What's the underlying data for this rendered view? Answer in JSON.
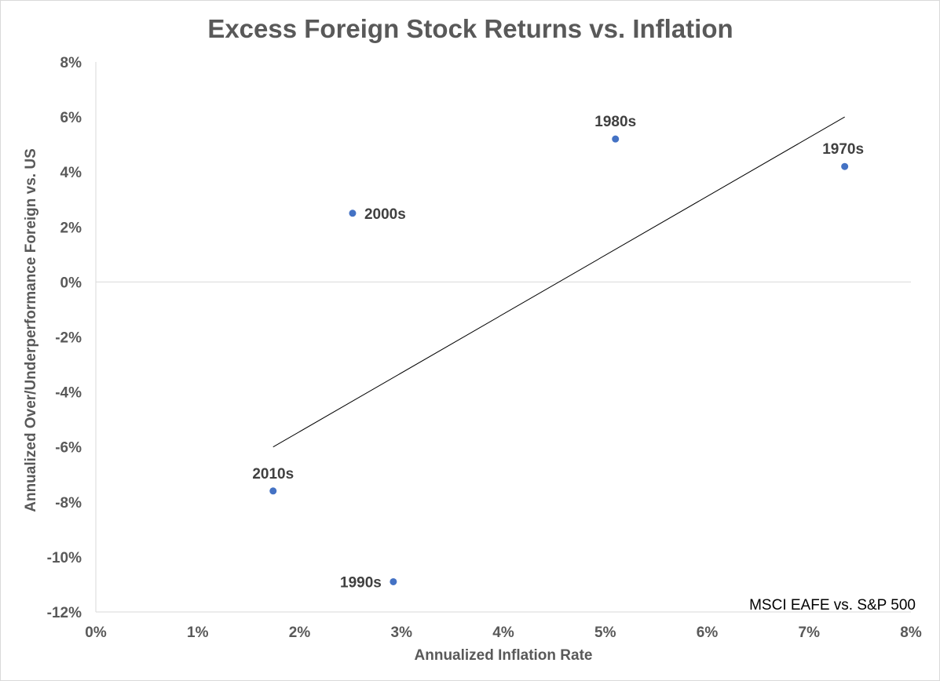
{
  "chart_data": {
    "type": "scatter",
    "title": "Excess Foreign Stock Returns vs. Inflation",
    "xlabel": "Annualized Inflation Rate",
    "ylabel": "Annualized Over/Underperformance Foreign vs. US",
    "xlim": [
      0,
      8
    ],
    "ylim": [
      -12,
      8
    ],
    "x_ticks": [
      0,
      1,
      2,
      3,
      4,
      5,
      6,
      7,
      8
    ],
    "y_ticks": [
      8,
      6,
      4,
      2,
      0,
      -2,
      -4,
      -6,
      -8,
      -10,
      -12
    ],
    "x_tick_labels": [
      "0%",
      "1%",
      "2%",
      "3%",
      "4%",
      "5%",
      "6%",
      "7%",
      "8%"
    ],
    "y_tick_labels": [
      "8%",
      "6%",
      "4%",
      "2%",
      "0%",
      "-2%",
      "-4%",
      "-6%",
      "-8%",
      "-10%",
      "-12%"
    ],
    "points": [
      {
        "label": "1970s",
        "x": 7.35,
        "y": 4.2
      },
      {
        "label": "1980s",
        "x": 5.1,
        "y": 5.2
      },
      {
        "label": "2000s",
        "x": 2.52,
        "y": 2.5
      },
      {
        "label": "2010s",
        "x": 1.74,
        "y": -7.6
      },
      {
        "label": "1990s",
        "x": 2.92,
        "y": -10.9
      }
    ],
    "trendline": {
      "x": [
        1.74,
        7.35
      ],
      "y": [
        -6.0,
        6.0
      ]
    },
    "grid": false,
    "zero_line": true,
    "annotation": "MSCI EAFE vs. S&P 500",
    "colors": {
      "points": "#4472c4",
      "trendline": "#000000",
      "axis": "#d9d9d9",
      "text": "#595959"
    }
  }
}
